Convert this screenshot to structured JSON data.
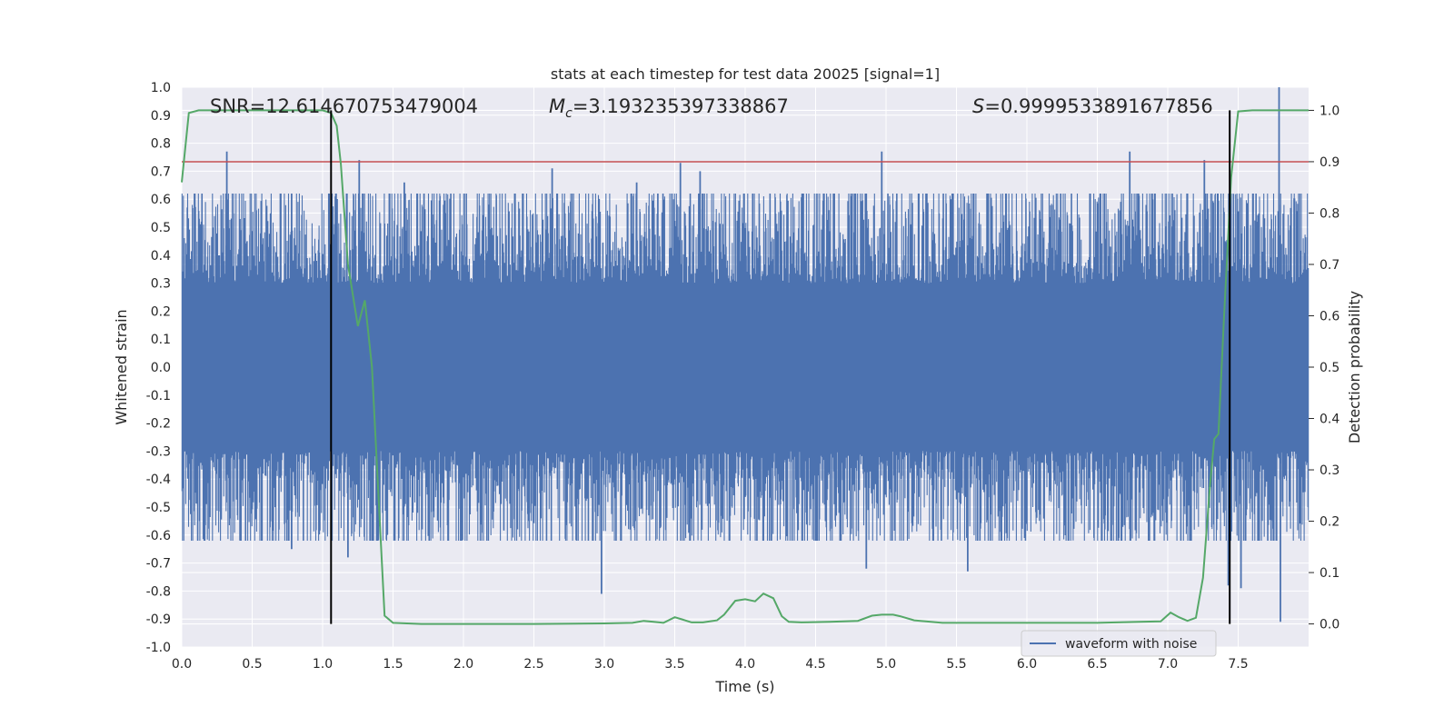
{
  "chart_data": {
    "type": "line",
    "title": "stats at each timestep for test data 20025 [signal=1]",
    "xlabel": "Time (s)",
    "ylabel": "Whitened strain",
    "ylabel_right": "Detection probability",
    "xlim": [
      0.0,
      8.0
    ],
    "ylim": [
      -1.0,
      1.0
    ],
    "ylim_right": [
      -0.045,
      1.045
    ],
    "xticks": [
      "0.0",
      "0.5",
      "1.0",
      "1.5",
      "2.0",
      "2.5",
      "3.0",
      "3.5",
      "4.0",
      "4.5",
      "5.0",
      "5.5",
      "6.0",
      "6.5",
      "7.0",
      "7.5"
    ],
    "yticks": [
      "1.0",
      "0.9",
      "0.8",
      "0.7",
      "0.6",
      "0.5",
      "0.4",
      "0.3",
      "0.2",
      "0.1",
      "0.0",
      "-0.1",
      "-0.2",
      "-0.3",
      "-0.4",
      "-0.5",
      "-0.6",
      "-0.7",
      "-0.8",
      "-0.9",
      "-1.0"
    ],
    "yticks_right": [
      "1.0",
      "0.9",
      "0.8",
      "0.7",
      "0.6",
      "0.5",
      "0.4",
      "0.3",
      "0.2",
      "0.1",
      "0.0"
    ],
    "annotations": {
      "snr": "SNR=12.614670753479004",
      "mc_symbol": "M",
      "mc_sub": "c",
      "mc_value": "=3.193235397338867",
      "s_symbol": "S",
      "s_value": "=0.9999533891677856"
    },
    "legend": {
      "label": "waveform with noise",
      "location": "lower right"
    },
    "threshold": {
      "value": 0.9,
      "axis": "right",
      "color": "#c44e52"
    },
    "vlines": [
      1.06,
      7.44
    ],
    "colors": {
      "waveform": "#4c72b0",
      "probability": "#55a868",
      "background": "#eaeaf2",
      "grid": "#ffffff",
      "vline": "#000000"
    },
    "series": [
      {
        "name": "waveform with noise",
        "axis": "left",
        "style": "dense noise band",
        "core_amplitude": 0.3,
        "typical_peak": 0.5,
        "max_value": 1.0,
        "min_value": -0.91,
        "notable_peaks": [
          {
            "x": 0.32,
            "y": 0.77
          },
          {
            "x": 0.78,
            "y": 0.62
          },
          {
            "x": 1.26,
            "y": 0.74
          },
          {
            "x": 1.58,
            "y": 0.66
          },
          {
            "x": 1.86,
            "y": 0.58
          },
          {
            "x": 2.63,
            "y": 0.71
          },
          {
            "x": 3.23,
            "y": 0.66
          },
          {
            "x": 3.68,
            "y": 0.7
          },
          {
            "x": 3.54,
            "y": 0.73
          },
          {
            "x": 4.97,
            "y": 0.77
          },
          {
            "x": 6.73,
            "y": 0.77
          },
          {
            "x": 7.26,
            "y": 0.74
          },
          {
            "x": 7.79,
            "y": 1.0
          },
          {
            "x": 2.98,
            "y": -0.81
          },
          {
            "x": 5.58,
            "y": -0.73
          },
          {
            "x": 4.86,
            "y": -0.72
          },
          {
            "x": 7.8,
            "y": -0.91
          },
          {
            "x": 7.43,
            "y": -0.78
          },
          {
            "x": 7.52,
            "y": -0.79
          },
          {
            "x": 0.78,
            "y": -0.65
          },
          {
            "x": 1.18,
            "y": -0.68
          }
        ]
      },
      {
        "name": "detection probability",
        "axis": "right",
        "x": [
          0.0,
          0.05,
          0.12,
          0.2,
          0.4,
          0.6,
          0.8,
          1.0,
          1.06,
          1.1,
          1.13,
          1.18,
          1.25,
          1.3,
          1.35,
          1.44,
          1.5,
          1.7,
          2.0,
          2.5,
          3.0,
          3.2,
          3.28,
          3.35,
          3.42,
          3.5,
          3.55,
          3.62,
          3.7,
          3.8,
          3.85,
          3.93,
          4.0,
          4.07,
          4.13,
          4.2,
          4.26,
          4.31,
          4.4,
          4.6,
          4.8,
          4.9,
          4.97,
          5.05,
          5.1,
          5.2,
          5.4,
          6.0,
          6.5,
          6.8,
          6.95,
          7.02,
          7.08,
          7.14,
          7.2,
          7.25,
          7.3,
          7.33,
          7.36,
          7.4,
          7.45,
          7.5,
          7.6,
          8.0
        ],
        "y": [
          0.86,
          0.995,
          1.0,
          1.0,
          1.0,
          1.0,
          1.0,
          1.0,
          0.995,
          0.97,
          0.895,
          0.7,
          0.58,
          0.63,
          0.5,
          0.016,
          0.002,
          0.0,
          0.0,
          0.0,
          0.001,
          0.002,
          0.006,
          0.004,
          0.002,
          0.013,
          0.009,
          0.003,
          0.003,
          0.007,
          0.018,
          0.045,
          0.048,
          0.044,
          0.059,
          0.05,
          0.015,
          0.004,
          0.003,
          0.004,
          0.006,
          0.016,
          0.018,
          0.018,
          0.015,
          0.007,
          0.002,
          0.002,
          0.002,
          0.004,
          0.005,
          0.022,
          0.013,
          0.006,
          0.012,
          0.09,
          0.27,
          0.36,
          0.37,
          0.6,
          0.87,
          0.998,
          1.0,
          1.0
        ]
      }
    ]
  }
}
